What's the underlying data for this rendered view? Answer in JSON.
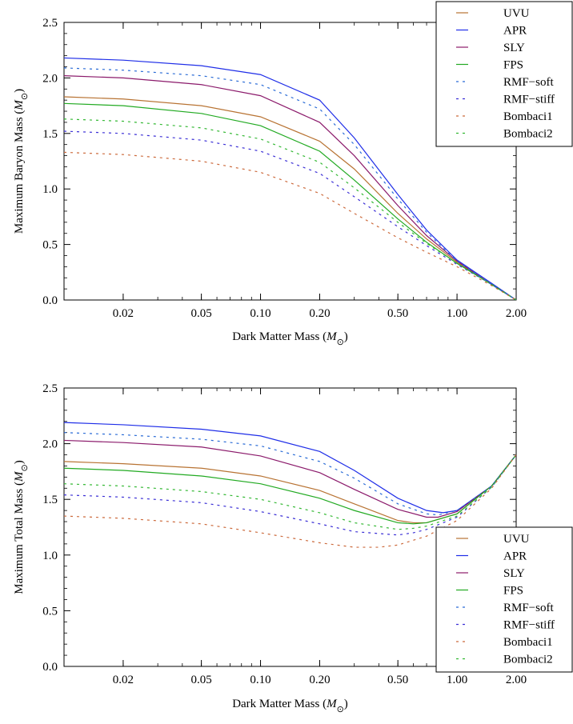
{
  "chart_data": [
    {
      "type": "line",
      "xscale": "log",
      "xlim": [
        0.01,
        2.0
      ],
      "ylim": [
        0.0,
        2.5
      ],
      "xticks": [
        0.02,
        0.05,
        0.1,
        0.2,
        0.5,
        1.0,
        2.0
      ],
      "xticklabels": [
        "0.02",
        "0.05",
        "0.10",
        "0.20",
        "0.50",
        "1.00",
        "2.00"
      ],
      "yticks": [
        0.0,
        0.5,
        1.0,
        1.5,
        2.0,
        2.5
      ],
      "yticklabels": [
        "0.0",
        "0.5",
        "1.0",
        "1.5",
        "2.0",
        "2.5"
      ],
      "xlabel": "Dark Matter Mass (M⊙)",
      "ylabel": "Maximum Baryon Mass (M⊙)",
      "legend": "top-right",
      "series": [
        {
          "name": "UVU",
          "color": "#b87333",
          "dash": "solid",
          "x": [
            0.01,
            0.02,
            0.05,
            0.1,
            0.2,
            0.3,
            0.5,
            0.7,
            1.0,
            1.5,
            2.0
          ],
          "y": [
            1.83,
            1.81,
            1.75,
            1.65,
            1.43,
            1.18,
            0.78,
            0.55,
            0.34,
            0.14,
            0.0
          ]
        },
        {
          "name": "APR",
          "color": "#1f2ee8",
          "dash": "solid",
          "x": [
            0.01,
            0.02,
            0.05,
            0.1,
            0.2,
            0.3,
            0.5,
            0.7,
            1.0,
            1.5,
            2.0
          ],
          "y": [
            2.18,
            2.16,
            2.11,
            2.03,
            1.8,
            1.46,
            0.95,
            0.63,
            0.36,
            0.15,
            0.0
          ]
        },
        {
          "name": "SLY",
          "color": "#8b1a6b",
          "dash": "solid",
          "x": [
            0.01,
            0.02,
            0.05,
            0.1,
            0.2,
            0.3,
            0.5,
            0.7,
            1.0,
            1.5,
            2.0
          ],
          "y": [
            2.02,
            2.0,
            1.94,
            1.84,
            1.6,
            1.3,
            0.85,
            0.58,
            0.35,
            0.14,
            0.0
          ]
        },
        {
          "name": "FPS",
          "color": "#22aa22",
          "dash": "solid",
          "x": [
            0.01,
            0.02,
            0.05,
            0.1,
            0.2,
            0.3,
            0.5,
            0.7,
            1.0,
            1.5,
            2.0
          ],
          "y": [
            1.77,
            1.75,
            1.68,
            1.57,
            1.34,
            1.08,
            0.73,
            0.52,
            0.33,
            0.14,
            0.0
          ]
        },
        {
          "name": "RMF−soft",
          "color": "#2a6bd6",
          "dash": "dashed",
          "x": [
            0.01,
            0.02,
            0.05,
            0.1,
            0.2,
            0.3,
            0.5,
            0.7,
            1.0,
            1.5,
            2.0
          ],
          "y": [
            2.09,
            2.07,
            2.02,
            1.94,
            1.72,
            1.4,
            0.91,
            0.61,
            0.35,
            0.14,
            0.0
          ]
        },
        {
          "name": "RMF−stiff",
          "color": "#3b2fd6",
          "dash": "dashed",
          "x": [
            0.01,
            0.02,
            0.05,
            0.1,
            0.2,
            0.3,
            0.5,
            0.7,
            1.0,
            1.5,
            2.0
          ],
          "y": [
            1.52,
            1.5,
            1.44,
            1.34,
            1.14,
            0.93,
            0.66,
            0.49,
            0.32,
            0.14,
            0.0
          ]
        },
        {
          "name": "Bombaci1",
          "color": "#cc6a3c",
          "dash": "dashed",
          "x": [
            0.01,
            0.02,
            0.05,
            0.1,
            0.2,
            0.3,
            0.5,
            0.7,
            1.0,
            1.5,
            2.0
          ],
          "y": [
            1.33,
            1.31,
            1.25,
            1.15,
            0.96,
            0.78,
            0.56,
            0.43,
            0.3,
            0.13,
            0.0
          ]
        },
        {
          "name": "Bombaci2",
          "color": "#33b833",
          "dash": "dashed",
          "x": [
            0.01,
            0.02,
            0.05,
            0.1,
            0.2,
            0.3,
            0.5,
            0.7,
            1.0,
            1.5,
            2.0
          ],
          "y": [
            1.63,
            1.61,
            1.55,
            1.45,
            1.24,
            1.01,
            0.7,
            0.51,
            0.33,
            0.14,
            0.0
          ]
        }
      ]
    },
    {
      "type": "line",
      "xscale": "log",
      "xlim": [
        0.01,
        2.0
      ],
      "ylim": [
        0.0,
        2.5
      ],
      "xticks": [
        0.02,
        0.05,
        0.1,
        0.2,
        0.5,
        1.0,
        2.0
      ],
      "xticklabels": [
        "0.02",
        "0.05",
        "0.10",
        "0.20",
        "0.50",
        "1.00",
        "2.00"
      ],
      "yticks": [
        0.0,
        0.5,
        1.0,
        1.5,
        2.0,
        2.5
      ],
      "yticklabels": [
        "0.0",
        "0.5",
        "1.0",
        "1.5",
        "2.0",
        "2.5"
      ],
      "xlabel": "Dark Matter Mass (M⊙)",
      "ylabel": "Maximum Total Mass (M⊙)",
      "legend": "right",
      "series": [
        {
          "name": "UVU",
          "color": "#b87333",
          "dash": "solid",
          "x": [
            0.01,
            0.02,
            0.05,
            0.1,
            0.2,
            0.3,
            0.5,
            0.6,
            0.7,
            1.0,
            1.5,
            2.0
          ],
          "y": [
            1.84,
            1.82,
            1.78,
            1.71,
            1.58,
            1.46,
            1.31,
            1.29,
            1.29,
            1.37,
            1.62,
            1.9
          ]
        },
        {
          "name": "APR",
          "color": "#1f2ee8",
          "dash": "solid",
          "x": [
            0.01,
            0.02,
            0.05,
            0.1,
            0.2,
            0.3,
            0.5,
            0.7,
            0.85,
            1.0,
            1.5,
            2.0
          ],
          "y": [
            2.19,
            2.17,
            2.13,
            2.07,
            1.93,
            1.76,
            1.51,
            1.4,
            1.38,
            1.4,
            1.62,
            1.9
          ]
        },
        {
          "name": "SLY",
          "color": "#8b1a6b",
          "dash": "solid",
          "x": [
            0.01,
            0.02,
            0.05,
            0.1,
            0.2,
            0.3,
            0.5,
            0.7,
            0.8,
            1.0,
            1.5,
            2.0
          ],
          "y": [
            2.03,
            2.01,
            1.97,
            1.89,
            1.74,
            1.59,
            1.41,
            1.34,
            1.34,
            1.39,
            1.62,
            1.9
          ]
        },
        {
          "name": "FPS",
          "color": "#22aa22",
          "dash": "solid",
          "x": [
            0.01,
            0.02,
            0.05,
            0.1,
            0.2,
            0.3,
            0.5,
            0.6,
            0.7,
            1.0,
            1.5,
            2.0
          ],
          "y": [
            1.78,
            1.76,
            1.71,
            1.64,
            1.51,
            1.4,
            1.29,
            1.28,
            1.29,
            1.37,
            1.62,
            1.9
          ]
        },
        {
          "name": "RMF−soft",
          "color": "#2a6bd6",
          "dash": "dashed",
          "x": [
            0.01,
            0.02,
            0.05,
            0.1,
            0.2,
            0.3,
            0.5,
            0.7,
            0.8,
            1.0,
            1.5,
            2.0
          ],
          "y": [
            2.1,
            2.08,
            2.04,
            1.98,
            1.84,
            1.69,
            1.46,
            1.37,
            1.36,
            1.4,
            1.62,
            1.9
          ]
        },
        {
          "name": "RMF−stiff",
          "color": "#3b2fd6",
          "dash": "dashed",
          "x": [
            0.01,
            0.02,
            0.05,
            0.1,
            0.2,
            0.3,
            0.5,
            0.6,
            0.7,
            1.0,
            1.5,
            2.0
          ],
          "y": [
            1.54,
            1.52,
            1.47,
            1.39,
            1.28,
            1.21,
            1.18,
            1.2,
            1.23,
            1.34,
            1.61,
            1.9
          ]
        },
        {
          "name": "Bombaci1",
          "color": "#cc6a3c",
          "dash": "dashed",
          "x": [
            0.01,
            0.02,
            0.05,
            0.1,
            0.2,
            0.3,
            0.4,
            0.5,
            0.7,
            1.0,
            1.5,
            2.0
          ],
          "y": [
            1.35,
            1.33,
            1.28,
            1.2,
            1.11,
            1.07,
            1.07,
            1.09,
            1.17,
            1.31,
            1.6,
            1.9
          ]
        },
        {
          "name": "Bombaci2",
          "color": "#33b833",
          "dash": "dashed",
          "x": [
            0.01,
            0.02,
            0.05,
            0.1,
            0.2,
            0.3,
            0.5,
            0.6,
            0.7,
            1.0,
            1.5,
            2.0
          ],
          "y": [
            1.64,
            1.62,
            1.57,
            1.5,
            1.38,
            1.29,
            1.23,
            1.24,
            1.26,
            1.35,
            1.61,
            1.9
          ]
        }
      ]
    }
  ]
}
